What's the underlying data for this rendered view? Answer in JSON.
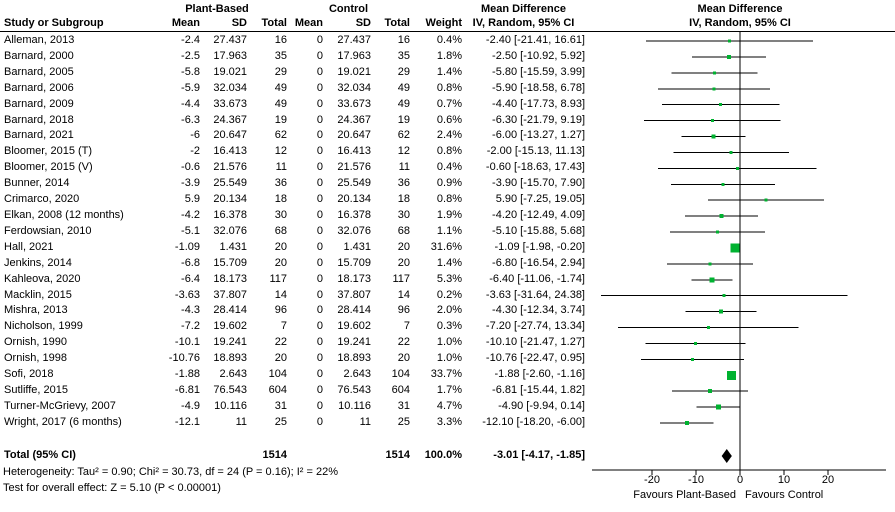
{
  "header": {
    "study_col": "Study or Subgroup",
    "group1": "Plant-Based",
    "group2": "Control",
    "mean": "Mean",
    "sd": "SD",
    "total": "Total",
    "weight": "Weight",
    "md_title": "Mean Difference",
    "ci_subtitle": "IV, Random, 95% CI"
  },
  "footer": {
    "heterogeneity": "Heterogeneity: Tau² = 0.90; Chi² = 30.73, df = 24 (P = 0.16); I² = 22%",
    "overall_effect": "Test for overall effect: Z = 5.10 (P < 0.00001)"
  },
  "colors": {
    "marker_green": "#00b230",
    "line_black": "#000000",
    "diamond_black": "#000000"
  },
  "chart_data": {
    "type": "forest",
    "effect_measure": "Mean Difference, IV, Random, 95% CI",
    "x_axis": {
      "ticks": [
        -20,
        -10,
        0,
        10,
        20
      ],
      "tick_labels": [
        "-20",
        "-10",
        "0",
        "10",
        "20"
      ],
      "min": -33.5,
      "max": 33,
      "label_left": "Favours Plant-Based",
      "label_right": "Favours Control"
    },
    "studies": [
      {
        "name": "Alleman, 2013",
        "pb_mean": "-2.4",
        "pb_sd": "27.437",
        "pb_total": "16",
        "c_mean": "0",
        "c_sd": "27.437",
        "c_total": "16",
        "weight": "0.4%",
        "weight_val": 0.4,
        "ci_text": "-2.40 [-21.41, 16.61]",
        "est": -2.4,
        "lo": -21.41,
        "hi": 16.61
      },
      {
        "name": "Barnard, 2000",
        "pb_mean": "-2.5",
        "pb_sd": "17.963",
        "pb_total": "35",
        "c_mean": "0",
        "c_sd": "17.963",
        "c_total": "35",
        "weight": "1.8%",
        "weight_val": 1.8,
        "ci_text": "-2.50 [-10.92, 5.92]",
        "est": -2.5,
        "lo": -10.92,
        "hi": 5.92
      },
      {
        "name": "Barnard, 2005",
        "pb_mean": "-5.8",
        "pb_sd": "19.021",
        "pb_total": "29",
        "c_mean": "0",
        "c_sd": "19.021",
        "c_total": "29",
        "weight": "1.4%",
        "weight_val": 1.4,
        "ci_text": "-5.80 [-15.59, 3.99]",
        "est": -5.8,
        "lo": -15.59,
        "hi": 3.99
      },
      {
        "name": "Barnard, 2006",
        "pb_mean": "-5.9",
        "pb_sd": "32.034",
        "pb_total": "49",
        "c_mean": "0",
        "c_sd": "32.034",
        "c_total": "49",
        "weight": "0.8%",
        "weight_val": 0.8,
        "ci_text": "-5.90 [-18.58, 6.78]",
        "est": -5.9,
        "lo": -18.58,
        "hi": 6.78
      },
      {
        "name": "Barnard, 2009",
        "pb_mean": "-4.4",
        "pb_sd": "33.673",
        "pb_total": "49",
        "c_mean": "0",
        "c_sd": "33.673",
        "c_total": "49",
        "weight": "0.7%",
        "weight_val": 0.7,
        "ci_text": "-4.40 [-17.73, 8.93]",
        "est": -4.4,
        "lo": -17.73,
        "hi": 8.93
      },
      {
        "name": "Barnard, 2018",
        "pb_mean": "-6.3",
        "pb_sd": "24.367",
        "pb_total": "19",
        "c_mean": "0",
        "c_sd": "24.367",
        "c_total": "19",
        "weight": "0.6%",
        "weight_val": 0.6,
        "ci_text": "-6.30 [-21.79, 9.19]",
        "est": -6.3,
        "lo": -21.79,
        "hi": 9.19
      },
      {
        "name": "Barnard, 2021",
        "pb_mean": "-6",
        "pb_sd": "20.647",
        "pb_total": "62",
        "c_mean": "0",
        "c_sd": "20.647",
        "c_total": "62",
        "weight": "2.4%",
        "weight_val": 2.4,
        "ci_text": "-6.00 [-13.27, 1.27]",
        "est": -6.0,
        "lo": -13.27,
        "hi": 1.27
      },
      {
        "name": "Bloomer, 2015 (T)",
        "pb_mean": "-2",
        "pb_sd": "16.413",
        "pb_total": "12",
        "c_mean": "0",
        "c_sd": "16.413",
        "c_total": "12",
        "weight": "0.8%",
        "weight_val": 0.8,
        "ci_text": "-2.00 [-15.13, 11.13]",
        "est": -2.0,
        "lo": -15.13,
        "hi": 11.13
      },
      {
        "name": "Bloomer, 2015 (V)",
        "pb_mean": "-0.6",
        "pb_sd": "21.576",
        "pb_total": "11",
        "c_mean": "0",
        "c_sd": "21.576",
        "c_total": "11",
        "weight": "0.4%",
        "weight_val": 0.4,
        "ci_text": "-0.60 [-18.63, 17.43]",
        "est": -0.6,
        "lo": -18.63,
        "hi": 17.43
      },
      {
        "name": "Bunner, 2014",
        "pb_mean": "-3.9",
        "pb_sd": "25.549",
        "pb_total": "36",
        "c_mean": "0",
        "c_sd": "25.549",
        "c_total": "36",
        "weight": "0.9%",
        "weight_val": 0.9,
        "ci_text": "-3.90 [-15.70, 7.90]",
        "est": -3.9,
        "lo": -15.7,
        "hi": 7.9
      },
      {
        "name": "Crimarco, 2020",
        "pb_mean": "5.9",
        "pb_sd": "20.134",
        "pb_total": "18",
        "c_mean": "0",
        "c_sd": "20.134",
        "c_total": "18",
        "weight": "0.8%",
        "weight_val": 0.8,
        "ci_text": "5.90 [-7.25, 19.05]",
        "est": 5.9,
        "lo": -7.25,
        "hi": 19.05
      },
      {
        "name": "Elkan, 2008 (12 months)",
        "pb_mean": "-4.2",
        "pb_sd": "16.378",
        "pb_total": "30",
        "c_mean": "0",
        "c_sd": "16.378",
        "c_total": "30",
        "weight": "1.9%",
        "weight_val": 1.9,
        "ci_text": "-4.20 [-12.49, 4.09]",
        "est": -4.2,
        "lo": -12.49,
        "hi": 4.09
      },
      {
        "name": "Ferdowsian, 2010",
        "pb_mean": "-5.1",
        "pb_sd": "32.076",
        "pb_total": "68",
        "c_mean": "0",
        "c_sd": "32.076",
        "c_total": "68",
        "weight": "1.1%",
        "weight_val": 1.1,
        "ci_text": "-5.10 [-15.88, 5.68]",
        "est": -5.1,
        "lo": -15.88,
        "hi": 5.68
      },
      {
        "name": "Hall, 2021",
        "pb_mean": "-1.09",
        "pb_sd": "1.431",
        "pb_total": "20",
        "c_mean": "0",
        "c_sd": "1.431",
        "c_total": "20",
        "weight": "31.6%",
        "weight_val": 31.6,
        "ci_text": "-1.09 [-1.98, -0.20]",
        "est": -1.09,
        "lo": -1.98,
        "hi": -0.2
      },
      {
        "name": "Jenkins, 2014",
        "pb_mean": "-6.8",
        "pb_sd": "15.709",
        "pb_total": "20",
        "c_mean": "0",
        "c_sd": "15.709",
        "c_total": "20",
        "weight": "1.4%",
        "weight_val": 1.4,
        "ci_text": "-6.80 [-16.54, 2.94]",
        "est": -6.8,
        "lo": -16.54,
        "hi": 2.94
      },
      {
        "name": "Kahleova, 2020",
        "pb_mean": "-6.4",
        "pb_sd": "18.173",
        "pb_total": "117",
        "c_mean": "0",
        "c_sd": "18.173",
        "c_total": "117",
        "weight": "5.3%",
        "weight_val": 5.3,
        "ci_text": "-6.40 [-11.06, -1.74]",
        "est": -6.4,
        "lo": -11.06,
        "hi": -1.74
      },
      {
        "name": "Macklin, 2015",
        "pb_mean": "-3.63",
        "pb_sd": "37.807",
        "pb_total": "14",
        "c_mean": "0",
        "c_sd": "37.807",
        "c_total": "14",
        "weight": "0.2%",
        "weight_val": 0.2,
        "ci_text": "-3.63 [-31.64, 24.38]",
        "est": -3.63,
        "lo": -31.64,
        "hi": 24.38
      },
      {
        "name": "Mishra, 2013",
        "pb_mean": "-4.3",
        "pb_sd": "28.414",
        "pb_total": "96",
        "c_mean": "0",
        "c_sd": "28.414",
        "c_total": "96",
        "weight": "2.0%",
        "weight_val": 2.0,
        "ci_text": "-4.30 [-12.34, 3.74]",
        "est": -4.3,
        "lo": -12.34,
        "hi": 3.74
      },
      {
        "name": "Nicholson, 1999",
        "pb_mean": "-7.2",
        "pb_sd": "19.602",
        "pb_total": "7",
        "c_mean": "0",
        "c_sd": "19.602",
        "c_total": "7",
        "weight": "0.3%",
        "weight_val": 0.3,
        "ci_text": "-7.20 [-27.74, 13.34]",
        "est": -7.2,
        "lo": -27.74,
        "hi": 13.34
      },
      {
        "name": "Ornish, 1990",
        "pb_mean": "-10.1",
        "pb_sd": "19.241",
        "pb_total": "22",
        "c_mean": "0",
        "c_sd": "19.241",
        "c_total": "22",
        "weight": "1.0%",
        "weight_val": 1.0,
        "ci_text": "-10.10 [-21.47, 1.27]",
        "est": -10.1,
        "lo": -21.47,
        "hi": 1.27
      },
      {
        "name": "Ornish, 1998",
        "pb_mean": "-10.76",
        "pb_sd": "18.893",
        "pb_total": "20",
        "c_mean": "0",
        "c_sd": "18.893",
        "c_total": "20",
        "weight": "1.0%",
        "weight_val": 1.0,
        "ci_text": "-10.76 [-22.47, 0.95]",
        "est": -10.76,
        "lo": -22.47,
        "hi": 0.95
      },
      {
        "name": "Sofi, 2018",
        "pb_mean": "-1.88",
        "pb_sd": "2.643",
        "pb_total": "104",
        "c_mean": "0",
        "c_sd": "2.643",
        "c_total": "104",
        "weight": "33.7%",
        "weight_val": 33.7,
        "ci_text": "-1.88 [-2.60, -1.16]",
        "est": -1.88,
        "lo": -2.6,
        "hi": -1.16
      },
      {
        "name": "Sutliffe, 2015",
        "pb_mean": "-6.81",
        "pb_sd": "76.543",
        "pb_total": "604",
        "c_mean": "0",
        "c_sd": "76.543",
        "c_total": "604",
        "weight": "1.7%",
        "weight_val": 1.7,
        "ci_text": "-6.81 [-15.44, 1.82]",
        "est": -6.81,
        "lo": -15.44,
        "hi": 1.82
      },
      {
        "name": "Turner-McGrievy, 2007",
        "pb_mean": "-4.9",
        "pb_sd": "10.116",
        "pb_total": "31",
        "c_mean": "0",
        "c_sd": "10.116",
        "c_total": "31",
        "weight": "4.7%",
        "weight_val": 4.7,
        "ci_text": "-4.90 [-9.94, 0.14]",
        "est": -4.9,
        "lo": -9.94,
        "hi": 0.14
      },
      {
        "name": "Wright, 2017 (6 months)",
        "pb_mean": "-12.1",
        "pb_sd": "11",
        "pb_total": "25",
        "c_mean": "0",
        "c_sd": "11",
        "c_total": "25",
        "weight": "3.3%",
        "weight_val": 3.3,
        "ci_text": "-12.10 [-18.20, -6.00]",
        "est": -12.1,
        "lo": -18.2,
        "hi": -6.0
      }
    ],
    "total": {
      "label": "Total (95% CI)",
      "pb_total": "1514",
      "c_total": "1514",
      "weight": "100.0%",
      "ci_text": "-3.01 [-4.17, -1.85]",
      "est": -3.01,
      "lo": -4.17,
      "hi": -1.85
    }
  }
}
